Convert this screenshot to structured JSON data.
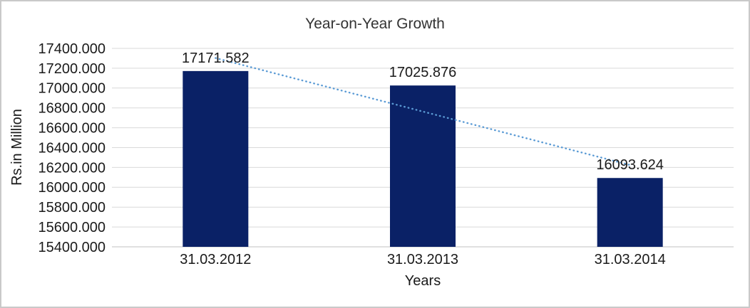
{
  "chart_data": {
    "type": "bar",
    "title": "Year-on-Year Growth",
    "xlabel": "Years",
    "ylabel": "Rs.in Million",
    "categories": [
      "31.03.2012",
      "31.03.2013",
      "31.03.2014"
    ],
    "values": [
      17171.582,
      17025.876,
      16093.624
    ],
    "data_labels": [
      "17171.582",
      "17025.876",
      "16093.624"
    ],
    "y_tick_labels": [
      "17400.000",
      "17200.000",
      "17000.000",
      "16800.000",
      "16600.000",
      "16400.000",
      "16200.000",
      "16000.000",
      "15800.000",
      "15600.000",
      "15400.000"
    ],
    "ylim": [
      15400,
      17400
    ],
    "y_step": 200,
    "grid": true,
    "legend": "none",
    "trendline": {
      "type": "linear",
      "line_style": "dotted",
      "color": "#5b9bd5"
    },
    "colors": {
      "bar_fill": "#0a2166",
      "gridline": "#d9d9d9",
      "axis_line": "#d6d6d6",
      "label_text": "#1a1a1a",
      "title_text": "#333333",
      "outer_border": "#c9c9c9",
      "background": "#ffffff"
    }
  }
}
